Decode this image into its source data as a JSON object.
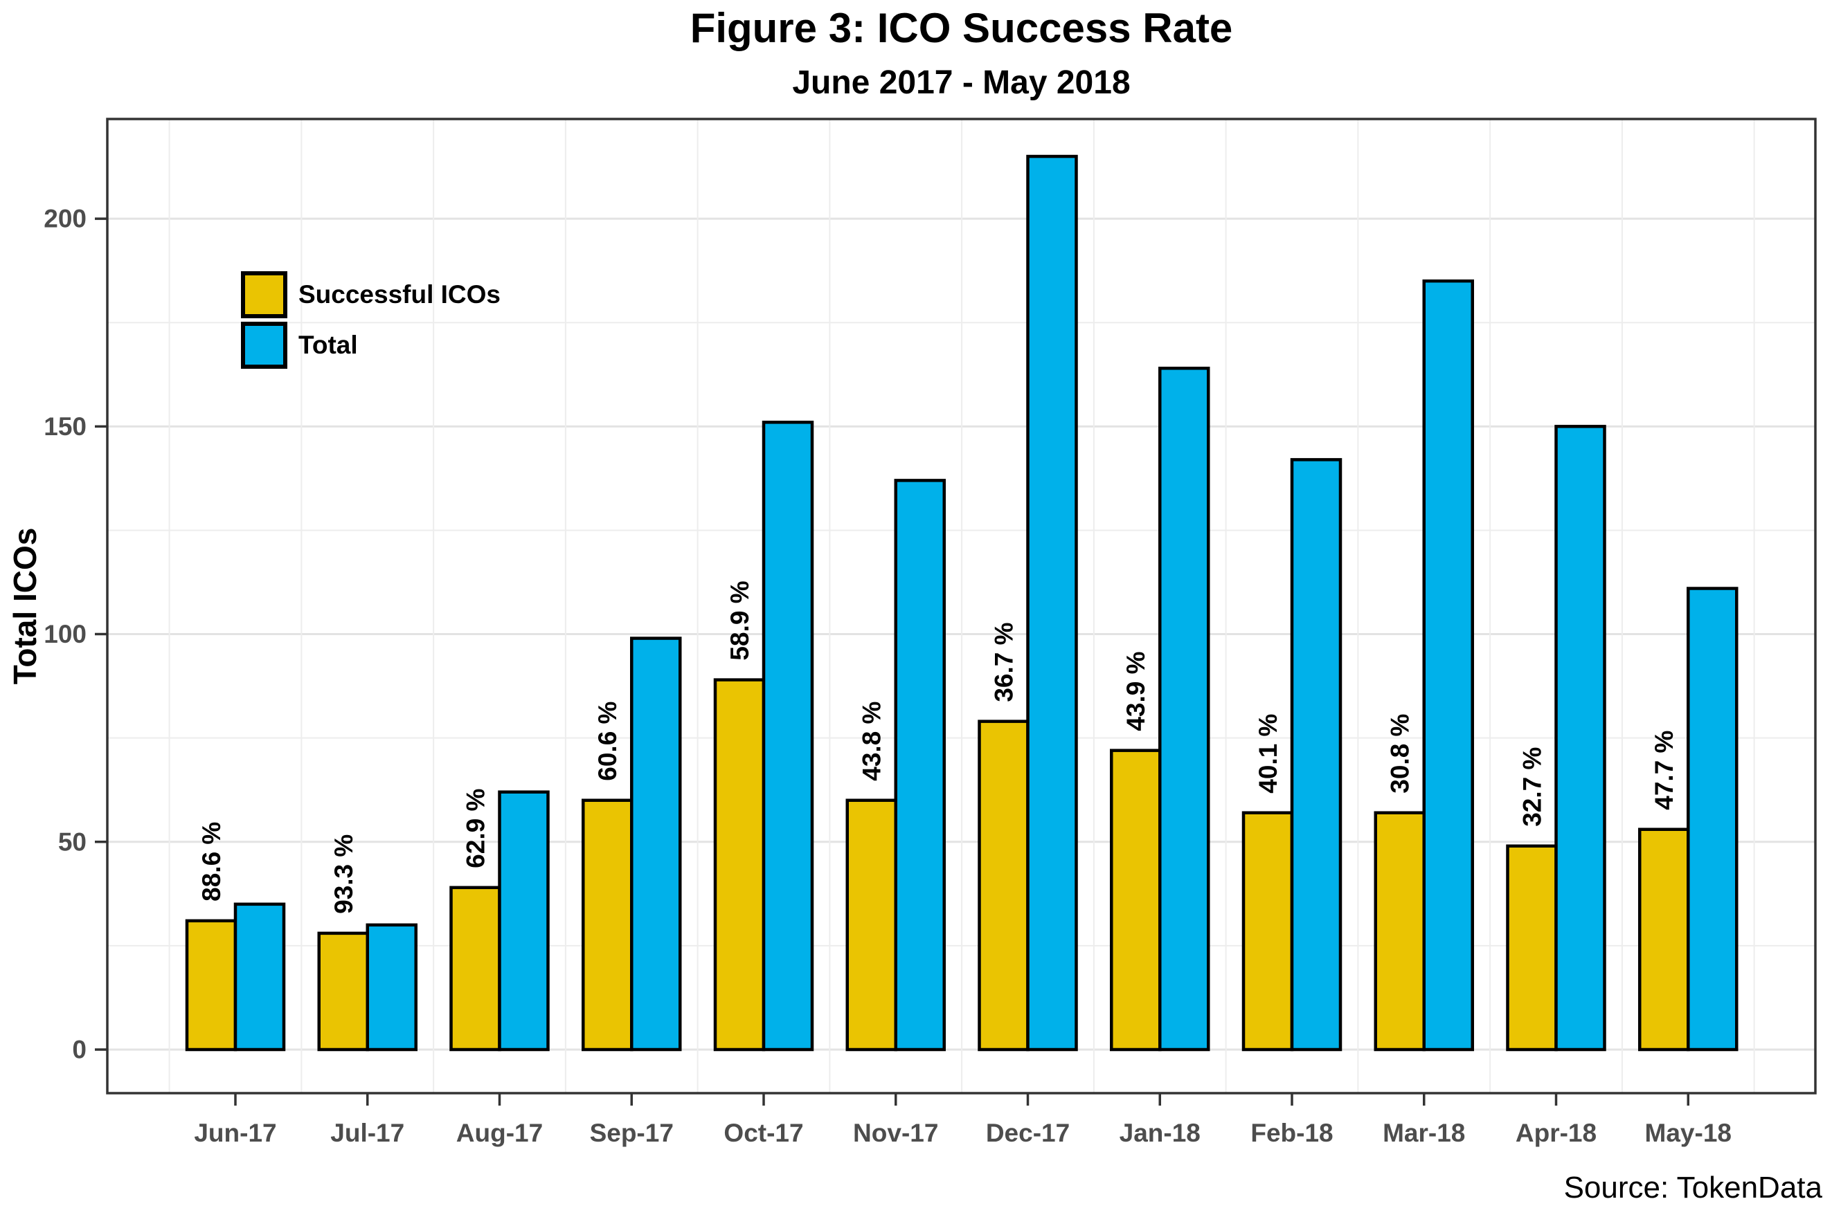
{
  "title": "Figure 3: ICO Success Rate",
  "subtitle": "June 2017 - May 2018",
  "source": "Source: TokenData",
  "colors": {
    "successful": "#EAC402",
    "total": "#00B1EA",
    "bar_border": "#000000",
    "grid_major": "#E3E3E3",
    "grid_minor": "#EDEDED",
    "panel_border": "#333333",
    "tick_label": "#4D4D4D",
    "pct_label": "#000000"
  },
  "chart_data": {
    "type": "bar",
    "title": "Figure 3: ICO Success Rate",
    "subtitle": "June 2017 - May 2018",
    "xlabel": "",
    "ylabel": "Total ICOs",
    "categories": [
      "Jun-17",
      "Jul-17",
      "Aug-17",
      "Sep-17",
      "Oct-17",
      "Nov-17",
      "Dec-17",
      "Jan-18",
      "Feb-18",
      "Mar-18",
      "Apr-18",
      "May-18"
    ],
    "series": [
      {
        "name": "Successful ICOs",
        "color": "#EAC402",
        "values": [
          31,
          28,
          39,
          60,
          89,
          60,
          79,
          72,
          57,
          57,
          49,
          53
        ]
      },
      {
        "name": "Total",
        "color": "#00B1EA",
        "values": [
          35,
          30,
          62,
          99,
          151,
          137,
          215,
          164,
          142,
          185,
          150,
          111
        ]
      }
    ],
    "bar_labels": [
      "88.6 %",
      "93.3 %",
      "62.9 %",
      "60.6 %",
      "58.9 %",
      "43.8 %",
      "36.7 %",
      "43.9 %",
      "40.1 %",
      "30.8 %",
      "32.7 %",
      "47.7 %"
    ],
    "yticks": [
      0,
      50,
      100,
      150,
      200
    ],
    "ylim": [
      0,
      224
    ],
    "grid": true,
    "legend_position": "top-left-inside",
    "source": "Source: TokenData"
  }
}
